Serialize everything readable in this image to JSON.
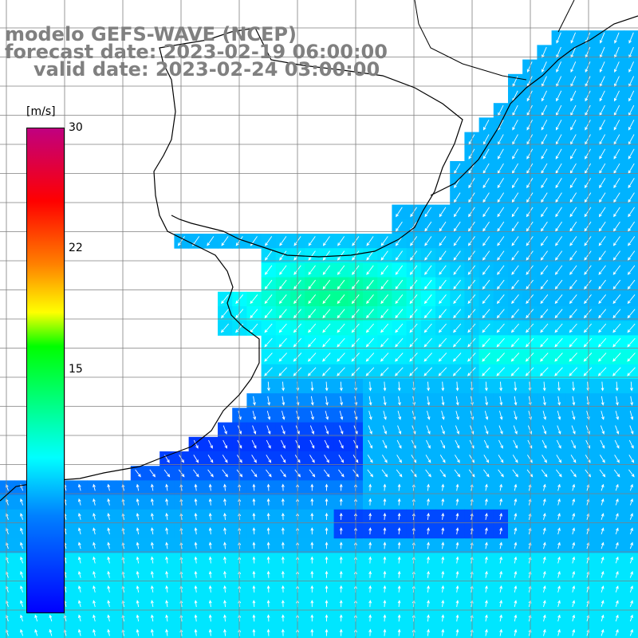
{
  "title": {
    "line1": "modelo GEFS-WAVE (NCEP)",
    "line2": "forecast date: 2023-02-19 06:00:00",
    "line3": "valid date: 2023-02-24 03:00:00"
  },
  "colorbar": {
    "unit": "[m/s]",
    "ticks": [
      "30",
      "22",
      "15"
    ],
    "colors": [
      "#0000ff",
      "#0080ff",
      "#00ffff",
      "#00ff00",
      "#ffff00",
      "#ff8000",
      "#ff0000",
      "#c00080"
    ]
  },
  "colors": {
    "gridline": "#7f7f7f",
    "coastline": "#000000",
    "arrows": "#ffffff",
    "land": "#ffffff"
  },
  "map": {
    "variable": "wind speed and direction",
    "palette_range": [
      0,
      30
    ]
  }
}
